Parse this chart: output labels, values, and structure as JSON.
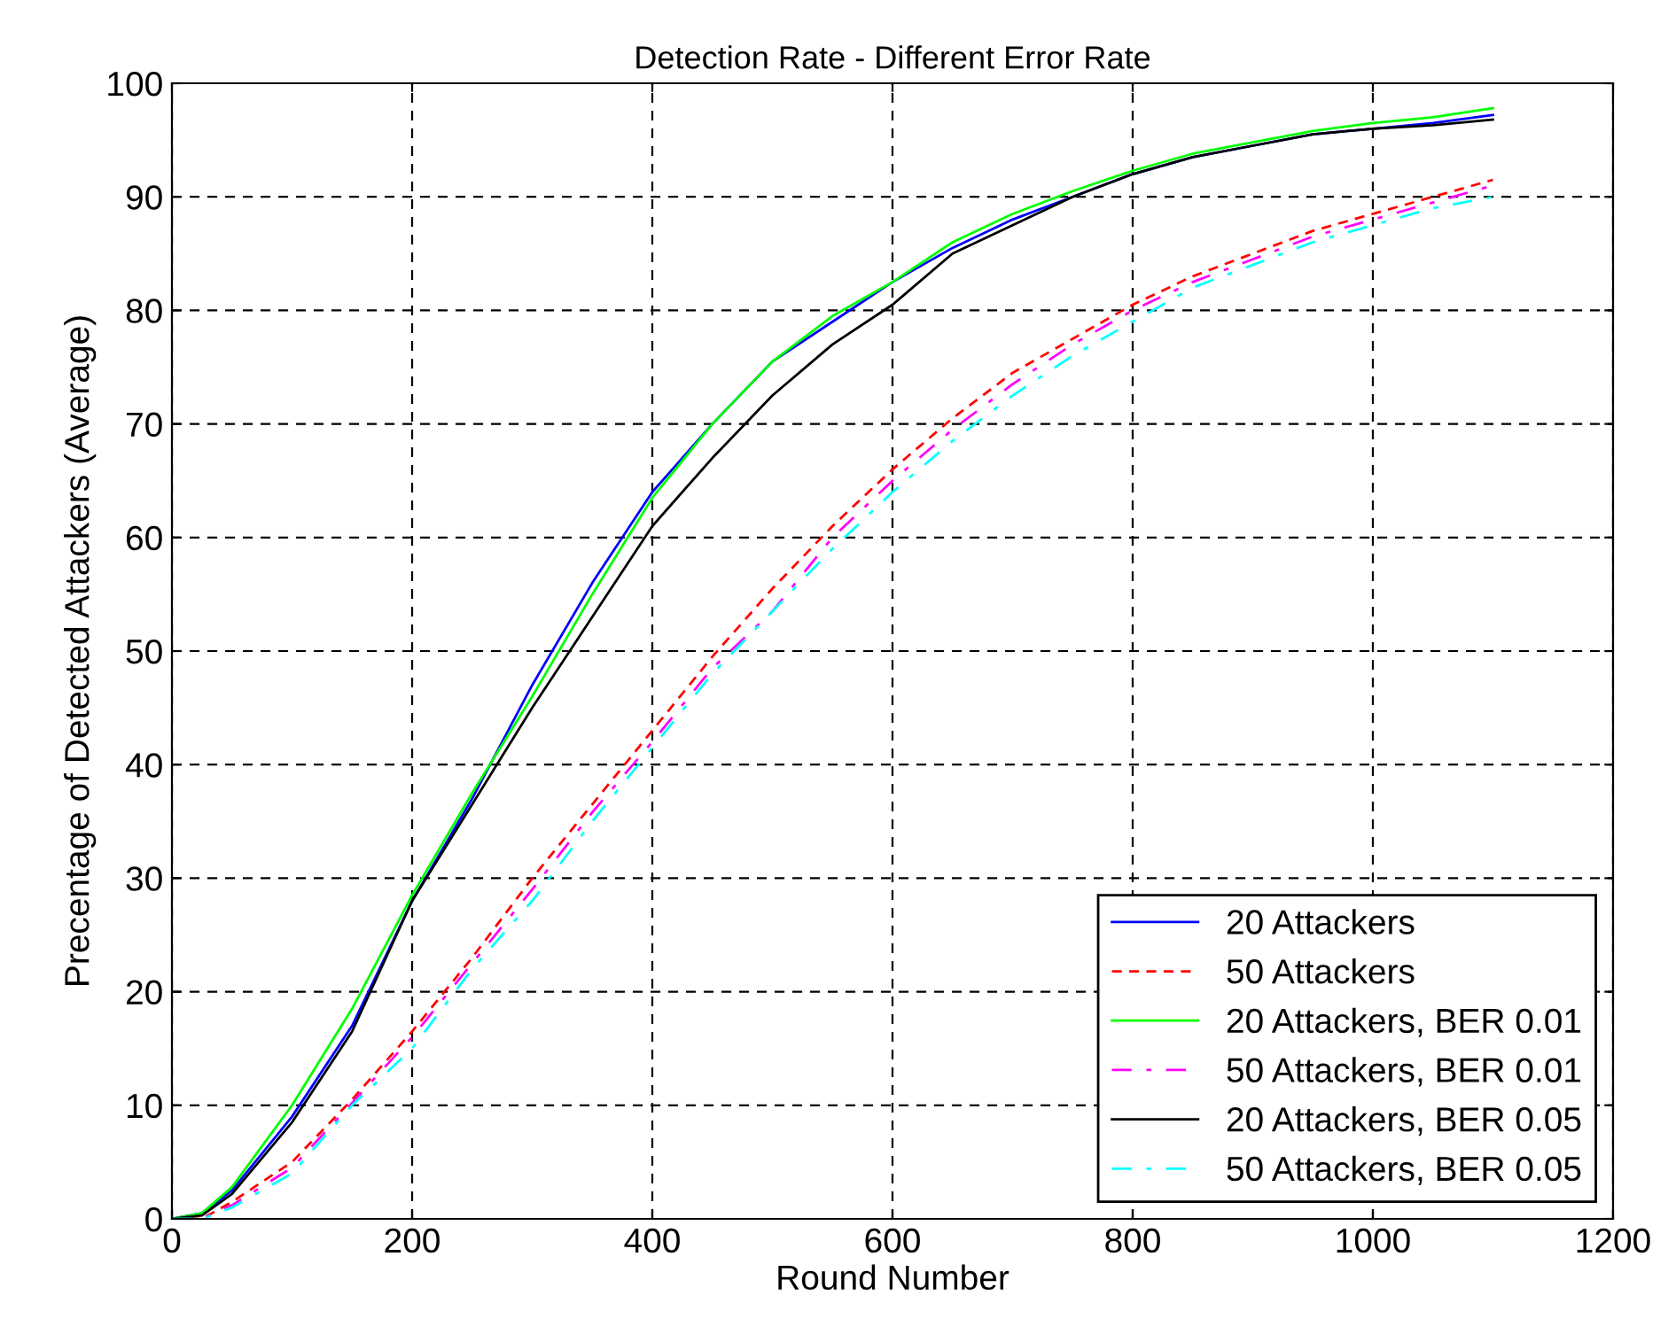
{
  "chart_data": {
    "type": "line",
    "title": "Detection Rate - Different Error Rate",
    "xlabel": "Round Number",
    "ylabel": "Precentage of Detected Attackers (Average)",
    "x": [
      0,
      25,
      50,
      100,
      150,
      200,
      250,
      300,
      350,
      400,
      450,
      500,
      550,
      600,
      650,
      700,
      750,
      800,
      850,
      900,
      950,
      1000,
      1050,
      1100
    ],
    "xlim": [
      0,
      1200
    ],
    "xticks": [
      0,
      200,
      400,
      600,
      800,
      1000,
      1200
    ],
    "ylim": [
      0,
      100
    ],
    "yticks": [
      0,
      10,
      20,
      30,
      40,
      50,
      60,
      70,
      80,
      90,
      100
    ],
    "grid": true,
    "legend": "bottom right",
    "marker": "none",
    "series": [
      {
        "name": "20 Attackers",
        "color": "#0000ff",
        "line_style": "solid",
        "values": [
          0,
          0.5,
          2.5,
          9,
          17,
          28,
          37,
          47,
          56,
          64,
          70,
          75.5,
          79,
          82.5,
          85.5,
          88,
          90,
          92,
          93.5,
          94.5,
          95.5,
          96,
          96.5,
          97.2
        ]
      },
      {
        "name": "50 Attackers",
        "color": "#ff0000",
        "line_style": "dashed",
        "values": [
          0,
          0,
          1.5,
          5,
          10.5,
          16.5,
          23,
          30,
          36.5,
          43,
          49.5,
          55.5,
          61,
          66,
          70.5,
          74.5,
          77.5,
          80.5,
          83,
          85,
          87,
          88.5,
          90,
          91.5
        ]
      },
      {
        "name": "20 Attackers, BER 0.01",
        "color": "#00ff00",
        "line_style": "solid",
        "values": [
          0,
          0.5,
          2.8,
          10,
          18.5,
          28.5,
          37.5,
          46,
          55,
          63.5,
          70,
          75.5,
          79.5,
          82.5,
          86,
          88.5,
          90.5,
          92.3,
          93.8,
          94.8,
          95.8,
          96.5,
          97,
          97.8
        ]
      },
      {
        "name": "50 Attackers, BER 0.01",
        "color": "#ff00ff",
        "line_style": "dashdot",
        "values": [
          0,
          0,
          1.2,
          4.5,
          10.2,
          16,
          22.5,
          29,
          35.8,
          42,
          48.5,
          53.5,
          60,
          65,
          69.5,
          73.5,
          77,
          80,
          82.5,
          84.5,
          86.5,
          88,
          89.5,
          91
        ]
      },
      {
        "name": "20 Attackers, BER 0.05",
        "color": "#000000",
        "line_style": "solid",
        "values": [
          0,
          0.3,
          2.2,
          8.5,
          16.5,
          28,
          36.5,
          45,
          53,
          61,
          67,
          72.5,
          77,
          80.5,
          85,
          87.5,
          90,
          92,
          93.5,
          94.5,
          95.5,
          96,
          96.3,
          96.8
        ]
      },
      {
        "name": "50 Attackers, BER 0.05",
        "color": "#00ffff",
        "line_style": "dashdot",
        "values": [
          0,
          0,
          1,
          4,
          10,
          15,
          22,
          28,
          35,
          41.5,
          48,
          53.5,
          59,
          64,
          68.5,
          72.5,
          76,
          79,
          82,
          84,
          86,
          87.5,
          89,
          90
        ]
      }
    ]
  }
}
